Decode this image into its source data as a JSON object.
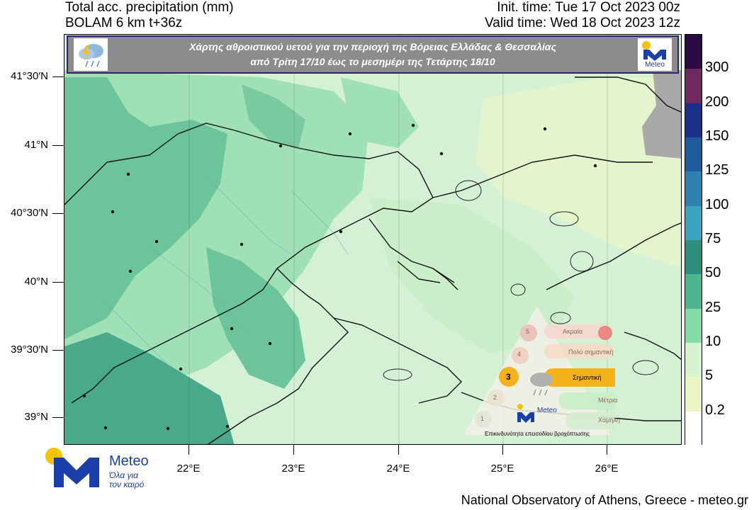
{
  "header": {
    "title": "Total acc. precipitation (mm)",
    "model": "BOLAM 6 km t+36z",
    "init_time": "Init. time: Tue 17 Oct 2023 00z",
    "valid_time": "Valid time: Wed 18 Oct 2023 12z"
  },
  "banner": {
    "line1": "Χάρτης αθροιστικού υετού για την περιοχή της Βόρειας Ελλάδας & Θεσσαλίας",
    "line2": "από Τρίτη 17/10 έως το μεσημέρι της Τετάρτης 18/10",
    "logo_text": "Meteo"
  },
  "lat_labels": [
    "41°30′N",
    "41°N",
    "40°30′N",
    "40°N",
    "39°30′N",
    "39°N"
  ],
  "lon_labels": [
    "22°E",
    "23°E",
    "24°E",
    "25°E",
    "26°E"
  ],
  "colorbar": {
    "labels": [
      "300",
      "200",
      "150",
      "125",
      "100",
      "75",
      "50",
      "25",
      "10",
      "5",
      "0.2"
    ],
    "colors": [
      "#2a0a45",
      "#6e2a5e",
      "#1a2f8a",
      "#1f5a9a",
      "#2f82b0",
      "#3aa4bf",
      "#2e8f7c",
      "#4cb48f",
      "#86dca9",
      "#d8f4cf",
      "#ecf5c6",
      "#ffffff"
    ]
  },
  "warning_legend": {
    "levels": [
      {
        "n": "5",
        "label": "Ακραία"
      },
      {
        "n": "4",
        "label": "Πολύ σημαντική"
      },
      {
        "n": "3",
        "label": "Σημαντική"
      },
      {
        "n": "2",
        "label": "Μέτρια"
      },
      {
        "n": "1",
        "label": "Χαμηλή"
      }
    ],
    "brand": "Meteo",
    "caption": "Επικινδυνότητα επεισοδίου βροχόπτωσης"
  },
  "logo": {
    "name": "Meteo",
    "tagline_1": "Όλα για",
    "tagline_2": "τον καιρό"
  },
  "footer": "National Observatory of Athens, Greece - meteo.gr"
}
